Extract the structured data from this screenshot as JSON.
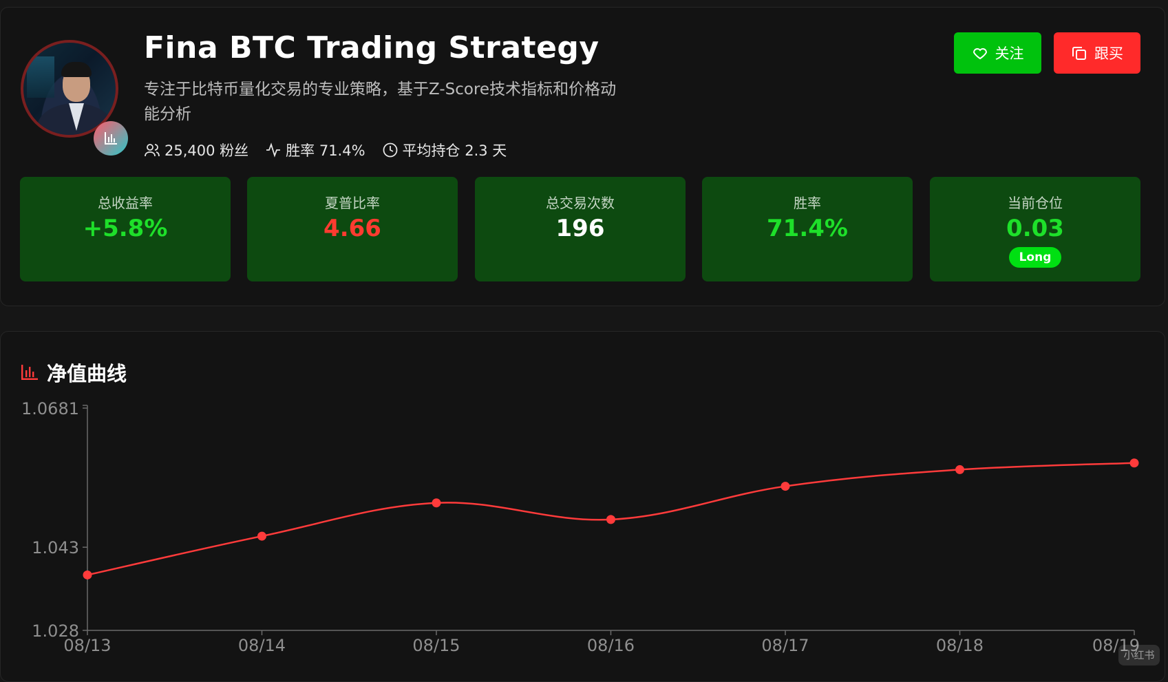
{
  "strategy": {
    "title": "Fina BTC Trading Strategy",
    "description": "专注于比特币量化交易的专业策略，基于Z-Score技术指标和价格动能分析",
    "followers": "25,400 粉丝",
    "win_rate_meta": "胜率 71.4%",
    "avg_hold": "平均持仓 2.3 天"
  },
  "actions": {
    "follow_label": "关注",
    "copy_label": "跟买"
  },
  "stats": [
    {
      "label": "总收益率",
      "value": "+5.8%",
      "color": "#1ee02a"
    },
    {
      "label": "夏普比率",
      "value": "4.66",
      "color": "#ff3b30"
    },
    {
      "label": "总交易次数",
      "value": "196",
      "color": "#ffffff"
    },
    {
      "label": "胜率",
      "value": "71.4%",
      "color": "#1ee02a"
    },
    {
      "label": "当前仓位",
      "value": "0.03",
      "color": "#1ee02a",
      "badge": "Long"
    }
  ],
  "colors": {
    "accent_green": "#00c20d",
    "accent_red": "#ff2a2a",
    "line": "#ff3b3b",
    "card_green": "#0d4a10"
  },
  "chart": {
    "title": "净值曲线"
  },
  "chart_data": {
    "type": "line",
    "title": "净值曲线",
    "x": [
      "08/13",
      "08/14",
      "08/15",
      "08/16",
      "08/17",
      "08/18",
      "08/19"
    ],
    "y_ticks": [
      "1.0681",
      "1.043",
      "1.028"
    ],
    "ylim": [
      1.028,
      1.0681
    ],
    "series": [
      {
        "values": [
          1.038,
          1.045,
          1.051,
          1.048,
          1.054,
          1.057,
          1.0582
        ]
      }
    ],
    "grid": false
  },
  "watermark": "小红书"
}
